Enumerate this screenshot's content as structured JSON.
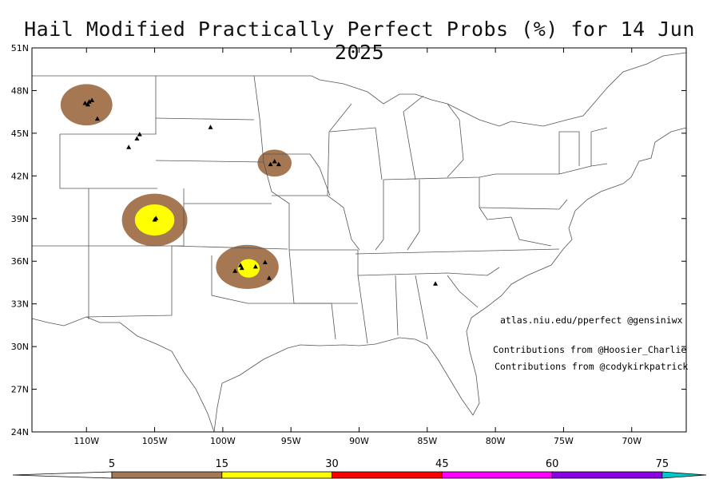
{
  "title": "Hail Modified Practically Perfect Probs (%) for 14 Jun 2025",
  "map": {
    "lon_range": [
      -114,
      -66
    ],
    "lat_range": [
      24,
      51
    ],
    "lat_ticks": [
      {
        "value": 51,
        "label": "51N"
      },
      {
        "value": 48,
        "label": "48N"
      },
      {
        "value": 45,
        "label": "45N"
      },
      {
        "value": 42,
        "label": "42N"
      },
      {
        "value": 39,
        "label": "39N"
      },
      {
        "value": 36,
        "label": "36N"
      },
      {
        "value": 33,
        "label": "33N"
      },
      {
        "value": 30,
        "label": "30N"
      },
      {
        "value": 27,
        "label": "27N"
      },
      {
        "value": 24,
        "label": "24N"
      }
    ],
    "lon_ticks": [
      {
        "value": -110,
        "label": "110W"
      },
      {
        "value": -105,
        "label": "105W"
      },
      {
        "value": -100,
        "label": "100W"
      },
      {
        "value": -95,
        "label": "95W"
      },
      {
        "value": -90,
        "label": "90W"
      },
      {
        "value": -85,
        "label": "85W"
      },
      {
        "value": -80,
        "label": "80W"
      },
      {
        "value": -75,
        "label": "75W"
      },
      {
        "value": -70,
        "label": "70W"
      }
    ],
    "prob_areas": [
      {
        "lon": -110,
        "lat": 47.0,
        "rx_deg": 1.9,
        "ry_deg": 1.45,
        "level": 5
      },
      {
        "lon": -96.2,
        "lat": 42.9,
        "rx_deg": 1.25,
        "ry_deg": 0.95,
        "level": 5
      },
      {
        "lon": -105,
        "lat": 38.9,
        "rx_deg": 2.4,
        "ry_deg": 1.85,
        "level": 5
      },
      {
        "lon": -105,
        "lat": 38.9,
        "rx_deg": 1.45,
        "ry_deg": 1.1,
        "level": 15
      },
      {
        "lon": -98.2,
        "lat": 35.6,
        "rx_deg": 2.3,
        "ry_deg": 1.55,
        "level": 5
      },
      {
        "lon": -98.1,
        "lat": 35.5,
        "rx_deg": 0.8,
        "ry_deg": 0.65,
        "level": 15
      }
    ],
    "reports": [
      [
        -110.1,
        47.1
      ],
      [
        -109.8,
        47.2
      ],
      [
        -109.6,
        47.3
      ],
      [
        -109.9,
        47.0
      ],
      [
        -109.2,
        46.0
      ],
      [
        -106.9,
        44.0
      ],
      [
        -106.3,
        44.6
      ],
      [
        -106.1,
        44.9
      ],
      [
        -100.9,
        45.4
      ],
      [
        -96.5,
        42.8
      ],
      [
        -96.2,
        43.0
      ],
      [
        -95.9,
        42.8
      ],
      [
        -105.0,
        38.9
      ],
      [
        -104.9,
        39.0
      ],
      [
        -98.7,
        35.7
      ],
      [
        -98.6,
        35.5
      ],
      [
        -99.1,
        35.3
      ],
      [
        -97.6,
        35.6
      ],
      [
        -96.9,
        35.9
      ],
      [
        -96.6,
        34.8
      ],
      [
        -84.4,
        34.4
      ]
    ]
  },
  "credits": [
    "atlas.niu.edu/pperfect @gensiniwx",
    "Contributions from @Hoosier_Charlie",
    "Contributions from @codykirkpatrick"
  ],
  "colorbar": {
    "labels": [
      "5",
      "15",
      "30",
      "45",
      "60",
      "75"
    ],
    "colors": [
      "#a57752",
      "#ffff00",
      "#ff0000",
      "#ff00ff",
      "#8c00e6",
      "#00c8c8"
    ],
    "zero_color": "#ffffff"
  }
}
